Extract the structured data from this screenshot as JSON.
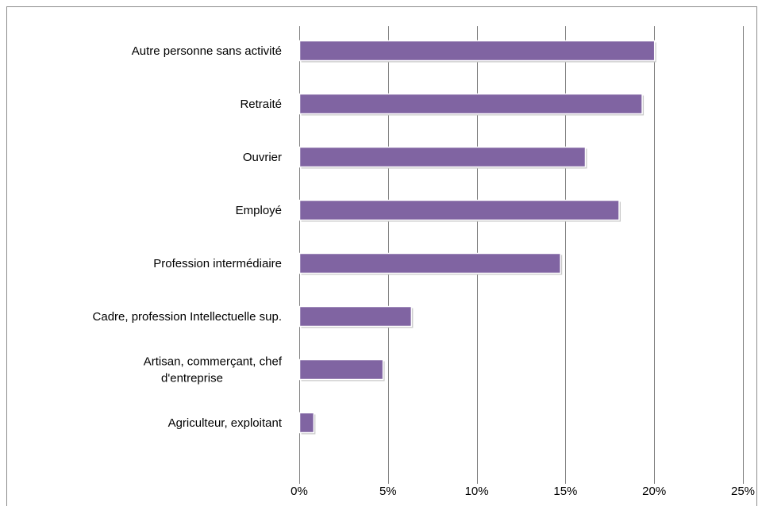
{
  "chart_data": {
    "type": "bar",
    "orientation": "horizontal",
    "categories": [
      "Autre personne sans activité",
      "Retraité",
      "Ouvrier",
      "Employé",
      "Profession intermédiaire",
      "Cadre, profession Intellectuelle sup.",
      "Artisan, commerçant, chef d'entreprise",
      "Agriculteur, exploitant"
    ],
    "category_lines": [
      [
        "Autre personne sans activité"
      ],
      [
        "Retraité"
      ],
      [
        "Ouvrier"
      ],
      [
        "Employé"
      ],
      [
        "Profession intermédiaire"
      ],
      [
        "Cadre, profession Intellectuelle sup."
      ],
      [
        "Artisan, commerçant, chef",
        "d'entreprise"
      ],
      [
        "Agriculteur, exploitant"
      ]
    ],
    "values": [
      0.2,
      0.193,
      0.161,
      0.18,
      0.147,
      0.063,
      0.047,
      0.008
    ],
    "xlim": [
      0,
      0.25
    ],
    "x_ticks": [
      0,
      0.05,
      0.1,
      0.15,
      0.2,
      0.25
    ],
    "x_tick_labels": [
      "0%",
      "5%",
      "10%",
      "15%",
      "20%",
      "25%"
    ],
    "title": "",
    "xlabel": "",
    "ylabel": "",
    "grid": "vertical",
    "legend": "none",
    "bar_color": "#8064a2"
  }
}
